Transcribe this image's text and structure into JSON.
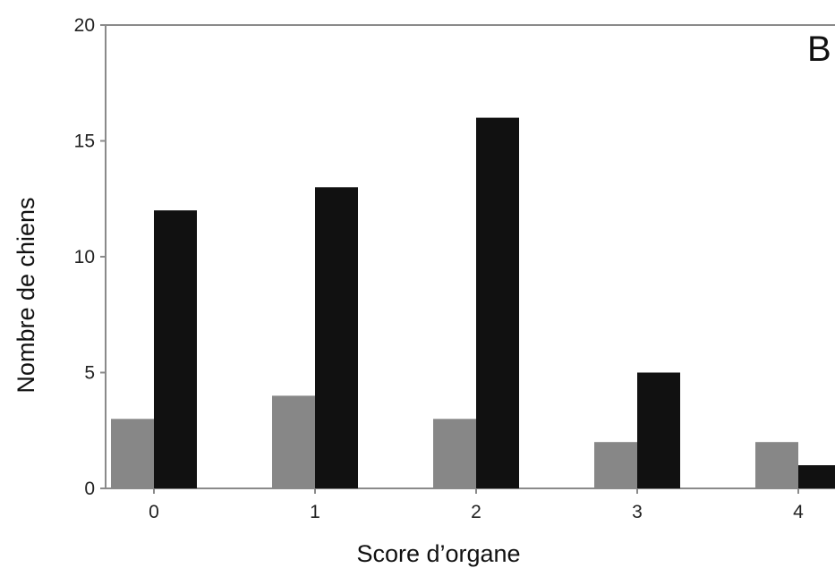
{
  "chart_data": {
    "type": "bar",
    "panel_label": "B",
    "xlabel": "Score d’organe",
    "ylabel": "Nombre de chiens",
    "categories": [
      "0",
      "1",
      "2",
      "3",
      "4"
    ],
    "ylim": [
      0,
      20
    ],
    "yticks": [
      "0",
      "5",
      "10",
      "15",
      "20"
    ],
    "grid": false,
    "series": [
      {
        "values": [
          3,
          4,
          3,
          2,
          2
        ],
        "color": "#878787"
      },
      {
        "values": [
          12,
          13,
          16,
          5,
          1
        ],
        "color": "#111111"
      }
    ]
  }
}
